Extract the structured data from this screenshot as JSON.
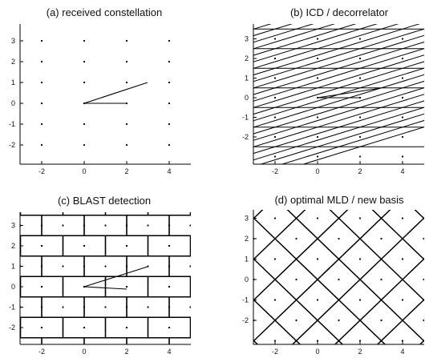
{
  "chart_data": [
    {
      "type": "scatter",
      "title": "(a) received constellation",
      "x_ticks": [
        "-2",
        "0",
        "2",
        "4"
      ],
      "y_ticks": [
        "3",
        "2",
        "1",
        "0",
        "-1",
        "-2"
      ],
      "xlim": [
        -3,
        5
      ],
      "ylim": [
        -2.6,
        3.5
      ],
      "points": {
        "description": "lattice points x=a+b*3, y=b*1"
      },
      "basis": [
        [
          1,
          0
        ],
        [
          3,
          1
        ]
      ],
      "grid_lines": "none"
    },
    {
      "type": "scatter",
      "title": "(b) ICD / decorrelator",
      "x_ticks": [
        "-2",
        "0",
        "2",
        "4"
      ],
      "y_ticks": [
        "3",
        "2",
        "1",
        "0",
        "-1",
        "-2"
      ],
      "xlim": [
        -3,
        5
      ],
      "ylim": [
        -2.8,
        3.3
      ],
      "basis": [
        [
          1,
          0
        ],
        [
          3,
          1
        ]
      ],
      "decision_regions": "parallelogram"
    },
    {
      "type": "scatter",
      "title": "(c) BLAST detection",
      "x_ticks": [
        "-2",
        "0",
        "2",
        "4"
      ],
      "y_ticks": [
        "3",
        "2",
        "1",
        "0",
        "-1",
        "-2"
      ],
      "xlim": [
        -3,
        5
      ],
      "ylim": [
        -2.6,
        3.5
      ],
      "basis": [
        [
          1,
          0
        ],
        [
          3,
          1
        ]
      ],
      "decision_regions": "brick"
    },
    {
      "type": "scatter",
      "title": "(d) optimal MLD / new basis",
      "x_ticks": [
        "-2",
        "0",
        "2",
        "4"
      ],
      "y_ticks": [
        "3",
        "2",
        "1",
        "0",
        "-1",
        "-2"
      ],
      "xlim": [
        -3,
        5
      ],
      "ylim": [
        -3.1,
        3.2
      ],
      "basis": [
        [
          1,
          1
        ],
        [
          1,
          -1
        ]
      ],
      "decision_regions": "diamond"
    }
  ]
}
